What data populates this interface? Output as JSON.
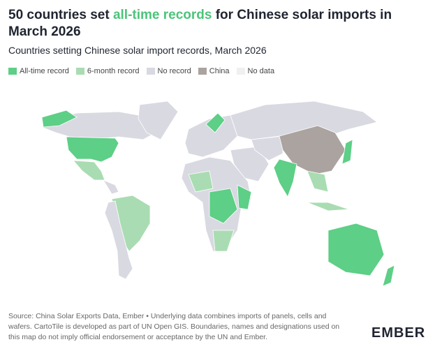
{
  "header": {
    "title": {
      "before": "50 countries set ",
      "highlight": "all-time records",
      "after": " for Chinese solar imports in March 2026",
      "highlight_color": "#4cc47a"
    },
    "subtitle": "Countries setting Chinese solar import records, March 2026"
  },
  "legend": [
    {
      "label": "All-time record",
      "color": "#5dcf86"
    },
    {
      "label": "6-month record",
      "color": "#a9dcb2"
    },
    {
      "label": "No record",
      "color": "#d9d9e2"
    },
    {
      "label": "China",
      "color": "#aba39f"
    },
    {
      "label": "No data",
      "color": "#f0f0f2"
    }
  ],
  "footer": {
    "source": "Source: China Solar Exports Data, Ember • Underlying data combines imports of panels, cells and wafers. CartoTile is developed as part of UN Open GIS. Boundaries, names and designations used on this map do not imply official endorsement or acceptance by the UN and Ember.",
    "logo": "EMBER"
  }
}
